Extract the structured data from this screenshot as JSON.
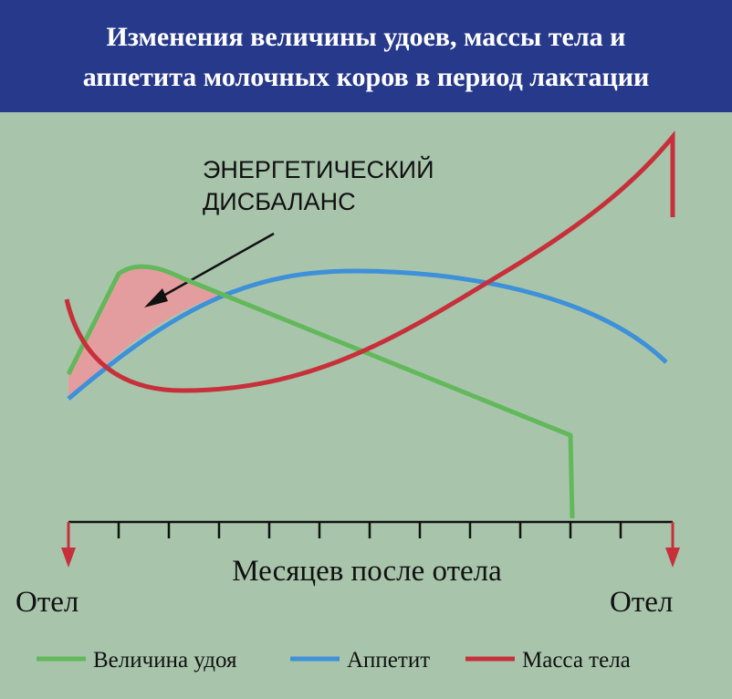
{
  "header": {
    "title_lines": [
      "Изменения величины удоев, массы тела и",
      "аппетита молочных коров в период лактации"
    ]
  },
  "annotation": {
    "lines": [
      "ЭНЕРГЕТИЧЕСКИЙ",
      "ДИСБАЛАНС"
    ]
  },
  "axis": {
    "label": "Месяцев после отела",
    "start_label": "Отел",
    "end_label": "Отел"
  },
  "legend": [
    {
      "name": "Величина удоя",
      "color": "#62b85a"
    },
    {
      "name": "Аппетит",
      "color": "#3e90d8"
    },
    {
      "name": "Масса тела",
      "color": "#c7303a"
    }
  ]
}
